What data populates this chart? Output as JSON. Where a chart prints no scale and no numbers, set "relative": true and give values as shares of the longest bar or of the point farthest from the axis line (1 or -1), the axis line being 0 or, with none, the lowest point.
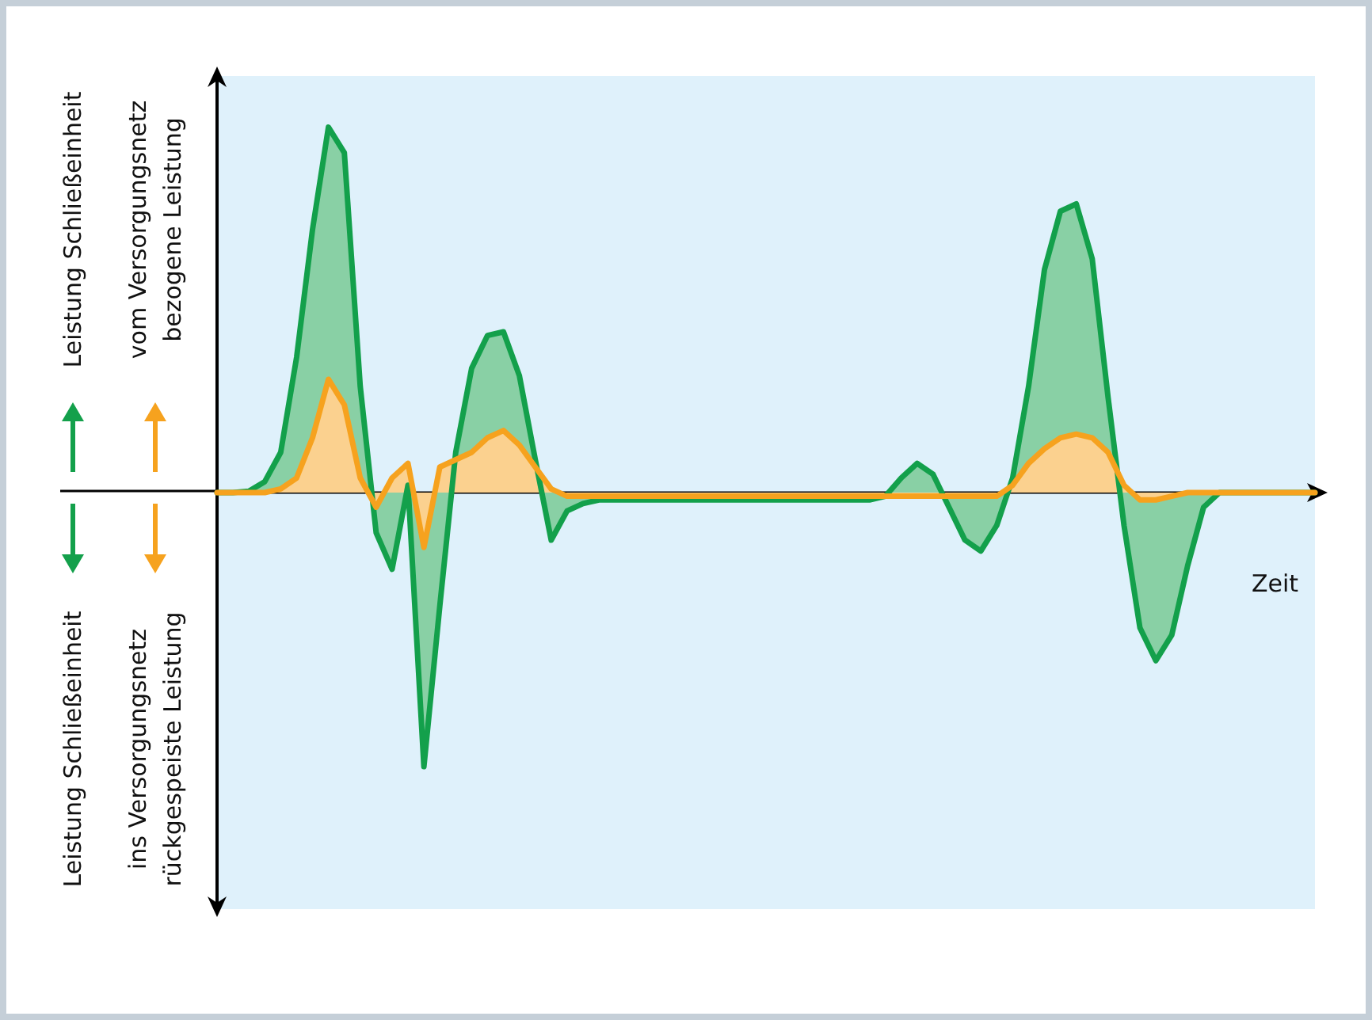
{
  "chart_data": {
    "type": "area",
    "relative": true,
    "xlabel": "Zeit",
    "categories": [
      null,
      null,
      null,
      null,
      null,
      null,
      null,
      null,
      null,
      null,
      null,
      null,
      null,
      null,
      null,
      null,
      null,
      null,
      null,
      null,
      null,
      null,
      null,
      null,
      null,
      null,
      null,
      null,
      null,
      null,
      null,
      null,
      null,
      null,
      null,
      null,
      null,
      null,
      null,
      null,
      null,
      null,
      null,
      null,
      null,
      null,
      null,
      null,
      null,
      null,
      null,
      null,
      null,
      null,
      null,
      null,
      null,
      null,
      null,
      null,
      null,
      null,
      null,
      null,
      null,
      null,
      null,
      null,
      null,
      null
    ],
    "series": [
      {
        "color": "#13a04b",
        "values": [
          0,
          0,
          0.004,
          0.03,
          0.11,
          0.37,
          0.72,
          1,
          0.93,
          0.29,
          -0.11,
          -0.21,
          0.02,
          -0.75,
          -0.31,
          0.11,
          0.34,
          0.43,
          0.44,
          0.32,
          0.09,
          -0.13,
          -0.05,
          -0.03,
          -0.02,
          -0.02,
          -0.02,
          -0.02,
          -0.02,
          -0.02,
          -0.02,
          -0.02,
          -0.02,
          -0.02,
          -0.02,
          -0.02,
          -0.02,
          -0.02,
          -0.02,
          -0.02,
          -0.02,
          -0.02,
          -0.01,
          0.04,
          0.08,
          0.05,
          -0.04,
          -0.13,
          -0.16,
          -0.09,
          0.04,
          0.29,
          0.61,
          0.77,
          0.79,
          0.64,
          0.26,
          -0.09,
          -0.37,
          -0.46,
          -0.39,
          -0.2,
          -0.04,
          0,
          0,
          0,
          0,
          0,
          0,
          0
        ]
      },
      {
        "color": "#f6a21e",
        "values": [
          0,
          0,
          0,
          0,
          0.01,
          0.04,
          0.15,
          0.31,
          0.24,
          0.04,
          -0.04,
          0.04,
          0.08,
          -0.15,
          0.07,
          0.09,
          0.11,
          0.15,
          0.17,
          0.13,
          0.07,
          0.01,
          -0.01,
          -0.01,
          -0.01,
          -0.01,
          -0.01,
          -0.01,
          -0.01,
          -0.01,
          -0.01,
          -0.01,
          -0.01,
          -0.01,
          -0.01,
          -0.01,
          -0.01,
          -0.01,
          -0.01,
          -0.01,
          -0.01,
          -0.01,
          -0.01,
          -0.01,
          -0.01,
          -0.01,
          -0.01,
          -0.01,
          -0.01,
          -0.01,
          0.02,
          0.08,
          0.12,
          0.15,
          0.16,
          0.15,
          0.11,
          0.02,
          -0.02,
          -0.02,
          -0.01,
          0,
          0,
          0,
          0,
          0,
          0,
          0,
          0,
          0
        ]
      }
    ],
    "annotations": [
      "Leistung Schließeinheit",
      "vom Versorgungsnetz\nbezogene Leistung",
      "Leistung Schließeinheit",
      "ins Versorgungsnetz\nrückgespeiste Leistung"
    ]
  }
}
